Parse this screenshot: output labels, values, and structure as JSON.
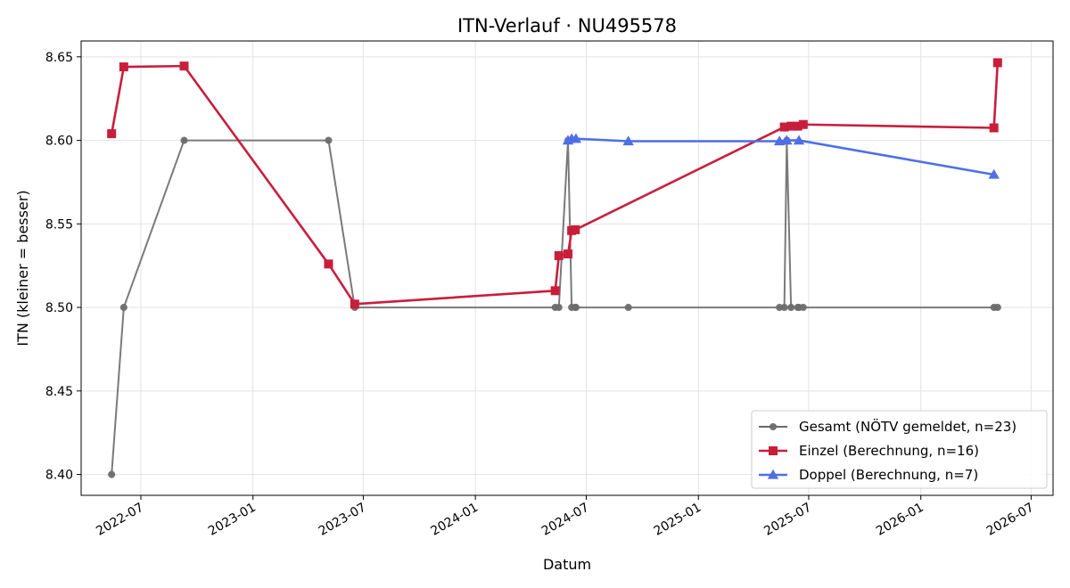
{
  "chart_data": {
    "type": "line",
    "title": "ITN-Verlauf · NU495578",
    "xlabel": "Datum",
    "ylabel": "ITN  (kleiner = besser)",
    "xlim": [
      "2022-03-25",
      "2026-08-06"
    ],
    "ylim": [
      8.3875,
      8.6595
    ],
    "grid": true,
    "legend_position": "lower right",
    "x_ticks": [
      "2022-07",
      "2023-01",
      "2023-07",
      "2024-01",
      "2024-07",
      "2025-01",
      "2025-07",
      "2026-01",
      "2026-07"
    ],
    "y_ticks": [
      "8.40",
      "8.45",
      "8.50",
      "8.55",
      "8.60",
      "8.65"
    ],
    "series": [
      {
        "name": "Gesamt (NÖTV gemeldet, n=23)",
        "color": "#6b6b6b",
        "marker": "circle",
        "x": [
          "2022-05-14",
          "2022-06-03",
          "2022-09-10",
          "2023-05-05",
          "2023-06-17",
          "2024-05-11",
          "2024-05-17",
          "2024-06-01",
          "2024-06-07",
          "2024-06-13",
          "2024-06-14",
          "2024-09-08",
          "2025-05-14",
          "2025-05-22",
          "2025-05-26",
          "2025-06-02",
          "2025-06-13",
          "2025-06-15",
          "2025-06-22",
          "2026-05-01",
          "2026-05-07"
        ],
        "y": [
          8.4,
          8.5,
          8.6,
          8.6,
          8.5,
          8.5,
          8.5,
          8.6,
          8.5,
          8.5,
          8.5,
          8.5,
          8.5,
          8.5,
          8.6,
          8.5,
          8.5,
          8.5,
          8.5,
          8.5,
          8.5
        ]
      },
      {
        "name": "Einzel (Berechnung, n=16)",
        "color": "#c81e3c",
        "marker": "square",
        "x": [
          "2022-05-14",
          "2022-06-03",
          "2022-09-10",
          "2023-05-05",
          "2023-06-17",
          "2024-05-11",
          "2024-05-17",
          "2024-06-01",
          "2024-06-07",
          "2024-06-13",
          "2025-05-22",
          "2025-06-02",
          "2025-06-13",
          "2025-06-22",
          "2026-05-01",
          "2026-05-07"
        ],
        "y": [
          8.604,
          8.644,
          8.6445,
          8.526,
          8.502,
          8.51,
          8.531,
          8.532,
          8.546,
          8.5465,
          8.608,
          8.6085,
          8.6085,
          8.6095,
          8.6075,
          8.6465
        ]
      },
      {
        "name": "Doppel (Berechnung, n=7)",
        "color": "#4f6fe6",
        "marker": "triangle",
        "x": [
          "2024-06-01",
          "2024-06-07",
          "2024-06-14",
          "2024-09-08",
          "2025-05-14",
          "2025-05-26",
          "2025-06-15",
          "2026-05-01"
        ],
        "y": [
          8.6,
          8.601,
          8.601,
          8.5995,
          8.5995,
          8.6,
          8.6,
          8.5795
        ]
      }
    ]
  }
}
